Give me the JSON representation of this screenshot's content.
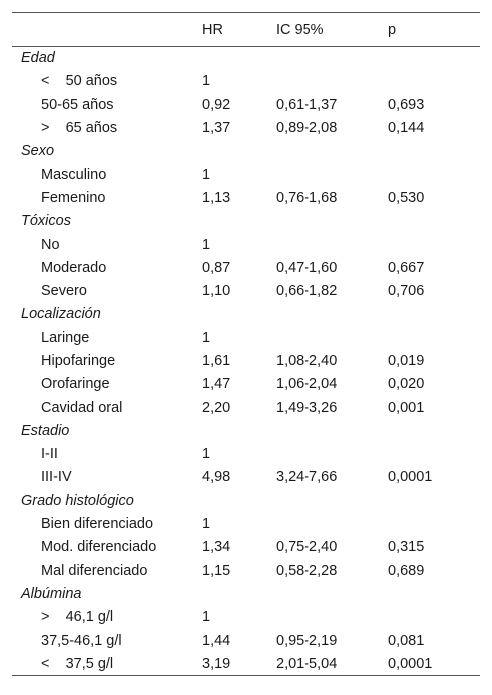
{
  "headers": {
    "col0": "",
    "hr": "HR",
    "ic": "IC 95%",
    "p": "p"
  },
  "groups": [
    {
      "title": "Edad",
      "rows": [
        {
          "label": "<    50 años",
          "hr": "1",
          "ic": "",
          "p": ""
        },
        {
          "label": "50-65 años",
          "hr": "0,92",
          "ic": "0,61-1,37",
          "p": "0,693"
        },
        {
          "label": ">    65 años",
          "hr": "1,37",
          "ic": "0,89-2,08",
          "p": "0,144"
        }
      ]
    },
    {
      "title": "Sexo",
      "rows": [
        {
          "label": "Masculino",
          "hr": "1",
          "ic": "",
          "p": ""
        },
        {
          "label": "Femenino",
          "hr": "1,13",
          "ic": "0,76-1,68",
          "p": "0,530"
        }
      ]
    },
    {
      "title": "Tóxicos",
      "rows": [
        {
          "label": "No",
          "hr": "1",
          "ic": "",
          "p": ""
        },
        {
          "label": "Moderado",
          "hr": "0,87",
          "ic": "0,47-1,60",
          "p": "0,667"
        },
        {
          "label": "Severo",
          "hr": "1,10",
          "ic": "0,66-1,82",
          "p": "0,706"
        }
      ]
    },
    {
      "title": "Localización",
      "rows": [
        {
          "label": "Laringe",
          "hr": "1",
          "ic": "",
          "p": ""
        },
        {
          "label": "Hipofaringe",
          "hr": "1,61",
          "ic": "1,08-2,40",
          "p": "0,019"
        },
        {
          "label": "Orofaringe",
          "hr": "1,47",
          "ic": "1,06-2,04",
          "p": "0,020"
        },
        {
          "label": "Cavidad oral",
          "hr": "2,20",
          "ic": "1,49-3,26",
          "p": "0,001"
        }
      ]
    },
    {
      "title": "Estadio",
      "rows": [
        {
          "label": "I-II",
          "hr": "1",
          "ic": "",
          "p": ""
        },
        {
          "label": "III-IV",
          "hr": "4,98",
          "ic": "3,24-7,66",
          "p": "0,0001"
        }
      ]
    },
    {
      "title": "Grado histológico",
      "rows": [
        {
          "label": "Bien diferenciado",
          "hr": "1",
          "ic": "",
          "p": ""
        },
        {
          "label": "Mod. diferenciado",
          "hr": "1,34",
          "ic": "0,75-2,40",
          "p": "0,315"
        },
        {
          "label": "Mal diferenciado",
          "hr": "1,15",
          "ic": "0,58-2,28",
          "p": "0,689"
        }
      ]
    },
    {
      "title": "Albúmina",
      "rows": [
        {
          "label": ">    46,1 g/l",
          "hr": "1",
          "ic": "",
          "p": ""
        },
        {
          "label": "37,5-46,1 g/l",
          "hr": "1,44",
          "ic": "0,95-2,19",
          "p": "0,081"
        },
        {
          "label": "<    37,5 g/l",
          "hr": "3,19",
          "ic": "2,01-5,04",
          "p": "0,0001"
        }
      ]
    }
  ]
}
